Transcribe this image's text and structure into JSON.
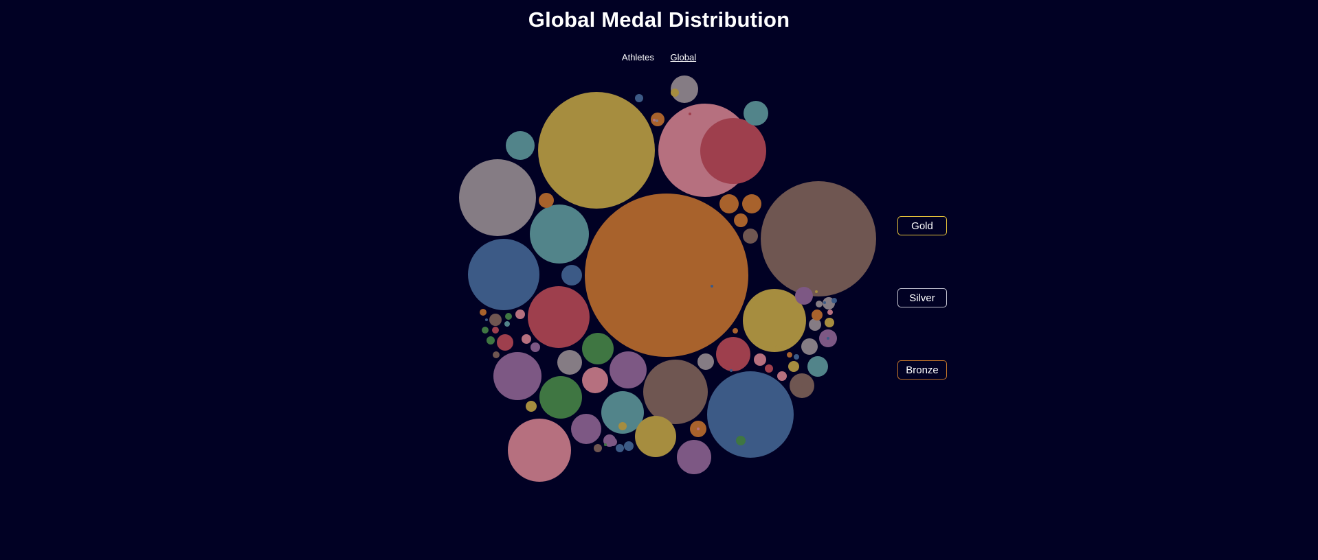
{
  "page": {
    "title": "Global Medal Distribution"
  },
  "nav": {
    "items": [
      {
        "label": "Athletes",
        "active": false
      },
      {
        "label": "Global",
        "active": true
      }
    ]
  },
  "filters": [
    {
      "label": "Gold",
      "color": "#e8c43a"
    },
    {
      "label": "Silver",
      "color": "#c7c7d4"
    },
    {
      "label": "Bronze",
      "color": "#c7782a"
    }
  ],
  "colors": {
    "background": "#010124",
    "orange": "#a8622c",
    "gold": "#a68d3f",
    "pink": "#b6707f",
    "red": "#9e3f4d",
    "brown": "#6f5651",
    "grey": "#857c84",
    "teal": "#52848a",
    "blue": "#3c5a86",
    "purple": "#7d5884",
    "green": "#3f7642"
  },
  "chart_data": {
    "type": "bubble",
    "bubbles": [
      {
        "color": "orange",
        "value": 100
      },
      {
        "color": "brown",
        "value": 50
      },
      {
        "color": "gold",
        "value": 51
      },
      {
        "color": "pink",
        "value": 32
      },
      {
        "color": "blue",
        "value": 28
      },
      {
        "color": "red",
        "value": 16
      },
      {
        "color": "grey",
        "value": 22
      },
      {
        "color": "blue",
        "value": 19
      },
      {
        "color": "teal",
        "value": 13.7
      },
      {
        "color": "red",
        "value": 14.2
      },
      {
        "color": "gold",
        "value": 15.4
      },
      {
        "color": "brown",
        "value": 15.5
      },
      {
        "color": "pink",
        "value": 14.8
      },
      {
        "color": "purple",
        "value": 8.7
      },
      {
        "color": "green",
        "value": 7.1
      },
      {
        "color": "teal",
        "value": 7.2
      },
      {
        "color": "gold",
        "value": 6.3
      },
      {
        "color": "purple",
        "value": 6.6
      },
      {
        "color": "purple",
        "value": 4.8
      },
      {
        "color": "grey",
        "value": 3.1
      },
      {
        "color": "teal",
        "value": 2.5
      },
      {
        "color": "teal",
        "value": 2.1
      },
      {
        "color": "green",
        "value": 3.6
      },
      {
        "color": "red",
        "value": 4.6
      },
      {
        "color": "purple",
        "value": 3.5
      },
      {
        "color": "pink",
        "value": 2.5
      },
      {
        "color": "grey",
        "value": 2.1
      },
      {
        "color": "brown",
        "value": 1.8
      },
      {
        "color": "orange",
        "value": 1.4
      },
      {
        "color": "orange",
        "value": 1.4
      },
      {
        "color": "orange",
        "value": 0.8
      },
      {
        "color": "orange",
        "value": 1.1
      },
      {
        "color": "blue",
        "value": 1.6
      },
      {
        "color": "teal",
        "value": 1.5
      },
      {
        "color": "grey",
        "value": 1.2
      },
      {
        "color": "brown",
        "value": 2.1
      },
      {
        "color": "orange",
        "value": 0.55
      },
      {
        "color": "purple",
        "value": 0.65
      },
      {
        "color": "green",
        "value": 0.55
      },
      {
        "color": "red",
        "value": 1.2
      },
      {
        "color": "purple",
        "value": 1.3
      },
      {
        "color": "gold",
        "value": 0.55
      },
      {
        "color": "orange",
        "value": 0.5
      },
      {
        "color": "purple",
        "value": 0.7
      },
      {
        "color": "brown",
        "value": 0.6
      },
      {
        "color": "grey",
        "value": 0.55
      },
      {
        "color": "gold",
        "value": 0.55
      },
      {
        "color": "purple",
        "value": 0.85
      },
      {
        "color": "blue",
        "value": 0.45
      },
      {
        "color": "grey",
        "value": 0.7
      },
      {
        "color": "pink",
        "value": 0.55
      },
      {
        "color": "pink",
        "value": 0.7
      },
      {
        "color": "gold",
        "value": 0.5
      },
      {
        "color": "pink",
        "value": 0.35
      },
      {
        "color": "red",
        "value": 0.35
      },
      {
        "color": "blue",
        "value": 0.45
      },
      {
        "color": "grey",
        "value": 0.5
      },
      {
        "color": "orange",
        "value": 0.3
      },
      {
        "color": "gold",
        "value": 0.3
      },
      {
        "color": "blue",
        "value": 0.2
      },
      {
        "color": "blue",
        "value": 0.25
      },
      {
        "color": "grey",
        "value": 0.25
      },
      {
        "color": "gold",
        "value": 0.2
      },
      {
        "color": "red",
        "value": 0.2
      },
      {
        "color": "blue",
        "value": 0.2
      },
      {
        "color": "grey",
        "value": 0.2
      },
      {
        "color": "brown",
        "value": 0.5
      },
      {
        "color": "orange",
        "value": 0.25
      },
      {
        "color": "blue",
        "value": 0.3
      },
      {
        "color": "green",
        "value": 0.15
      },
      {
        "color": "teal",
        "value": 0.15
      },
      {
        "color": "pink",
        "value": 0.2
      },
      {
        "color": "pink",
        "value": 0.15
      },
      {
        "color": "purple",
        "value": 0.2
      },
      {
        "color": "red",
        "value": 0.25
      },
      {
        "color": "green",
        "value": 0.2
      },
      {
        "color": "green",
        "value": 0.2
      },
      {
        "color": "brown",
        "value": 0.35
      },
      {
        "color": "red",
        "value": 0.15
      },
      {
        "color": "gold",
        "value": 0.35
      },
      {
        "color": "purple",
        "value": 0.3
      },
      {
        "color": "blue",
        "value": 0.2
      },
      {
        "color": "brown",
        "value": 0.3
      },
      {
        "color": "green",
        "value": 0.2
      },
      {
        "color": "gold",
        "value": 0.2
      },
      {
        "color": "orange",
        "value": 0.1
      },
      {
        "color": "blue",
        "value": 0.15
      },
      {
        "color": "grey",
        "value": 0.15
      },
      {
        "color": "blue",
        "value": 0.1
      },
      {
        "color": "blue",
        "value": 0.1
      },
      {
        "color": "pink",
        "value": 0.15
      },
      {
        "color": "pink",
        "value": 0.1
      },
      {
        "color": "orange",
        "value": 0.1
      }
    ]
  }
}
